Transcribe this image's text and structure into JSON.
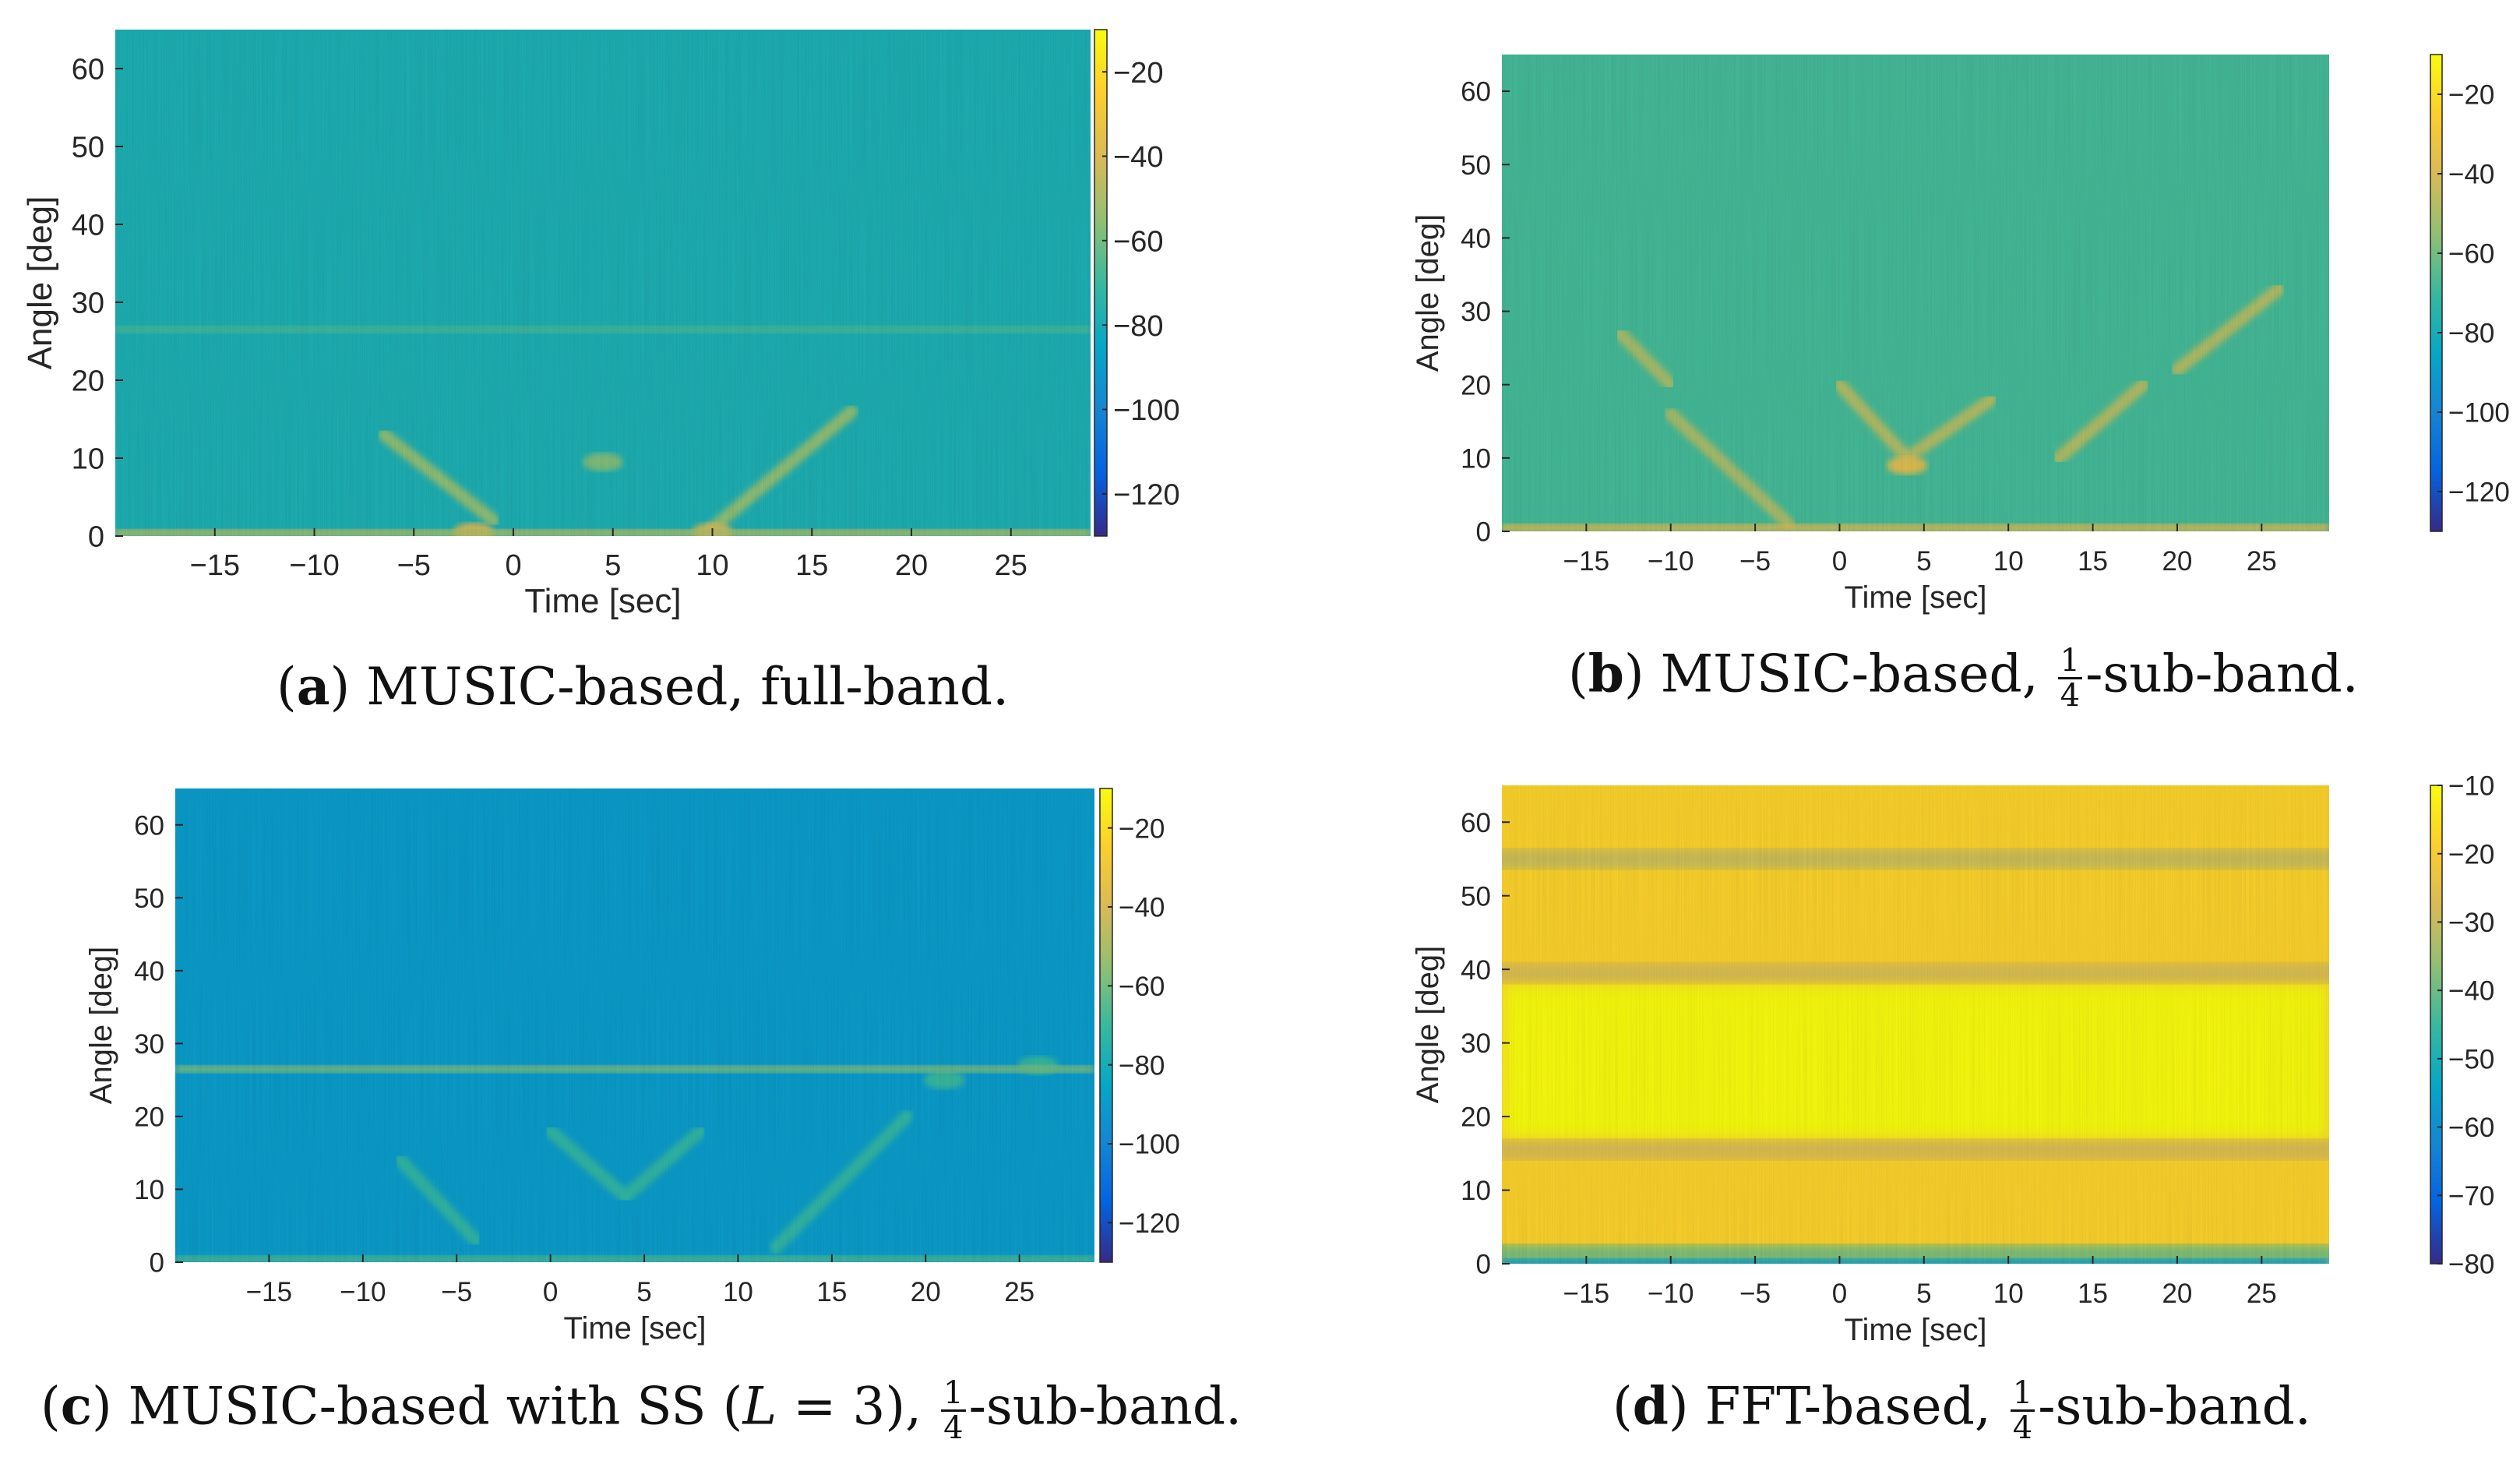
{
  "chart_data": [
    {
      "id": "a",
      "type": "heatmap",
      "xlabel": "Time [sec]",
      "ylabel": "Angle [deg]",
      "x_ticks": [
        -15,
        -10,
        -5,
        0,
        5,
        10,
        15,
        20,
        25
      ],
      "y_ticks": [
        0,
        10,
        20,
        30,
        40,
        50,
        60
      ],
      "xlim": [
        -20,
        29
      ],
      "ylim": [
        0,
        65
      ],
      "colorbar_ticks": [
        -20,
        -40,
        -60,
        -80,
        -100,
        -120
      ],
      "colorbar_range": [
        -130,
        -10
      ],
      "background_level": -78,
      "features": [
        {
          "kind": "hline",
          "y": 26.5,
          "level": -68,
          "x_range": [
            -20,
            29
          ]
        },
        {
          "kind": "hline",
          "y": 0.4,
          "level": -50,
          "x_range": [
            -20,
            29
          ]
        },
        {
          "kind": "track",
          "from": [
            -6.5,
            13
          ],
          "to": [
            -1,
            2
          ],
          "level": -55
        },
        {
          "kind": "track",
          "from": [
            17,
            16
          ],
          "to": [
            10,
            1
          ],
          "level": -55
        },
        {
          "kind": "blob",
          "at": [
            4.5,
            9.5
          ],
          "level": -58
        },
        {
          "kind": "blob",
          "at": [
            -2,
            0.5
          ],
          "level": -40
        },
        {
          "kind": "blob",
          "at": [
            10,
            0.5
          ],
          "level": -42
        }
      ],
      "caption": {
        "label": "a",
        "text": "MUSIC-based, full-band."
      }
    },
    {
      "id": "b",
      "type": "heatmap",
      "xlabel": "Time [sec]",
      "ylabel": "Angle [deg]",
      "x_ticks": [
        -15,
        -10,
        -5,
        0,
        5,
        10,
        15,
        20,
        25
      ],
      "y_ticks": [
        0,
        10,
        20,
        30,
        40,
        50,
        60
      ],
      "xlim": [
        -20,
        29
      ],
      "ylim": [
        0,
        65
      ],
      "colorbar_ticks": [
        -20,
        -40,
        -60,
        -80,
        -100,
        -120
      ],
      "colorbar_range": [
        -130,
        -10
      ],
      "background_level": -68,
      "features": [
        {
          "kind": "hline",
          "y": 0.5,
          "level": -40,
          "x_range": [
            -20,
            29
          ]
        },
        {
          "kind": "track",
          "from": [
            -13,
            27
          ],
          "to": [
            -10,
            20
          ],
          "level": -50
        },
        {
          "kind": "track",
          "from": [
            -10,
            16
          ],
          "to": [
            -3,
            1
          ],
          "level": -50
        },
        {
          "kind": "track",
          "from": [
            0,
            20
          ],
          "to": [
            4,
            10
          ],
          "level": -48
        },
        {
          "kind": "track",
          "from": [
            4,
            10
          ],
          "to": [
            9,
            18
          ],
          "level": -48
        },
        {
          "kind": "track",
          "from": [
            13,
            10
          ],
          "to": [
            18,
            20
          ],
          "level": -48
        },
        {
          "kind": "track",
          "from": [
            20,
            22
          ],
          "to": [
            26,
            33
          ],
          "level": -48
        },
        {
          "kind": "blob",
          "at": [
            4,
            9
          ],
          "level": -38
        }
      ],
      "caption": {
        "label": "b",
        "text_before": "MUSIC-based, ",
        "frac": [
          "1",
          "4"
        ],
        "text_after": "-sub-band."
      }
    },
    {
      "id": "c",
      "type": "heatmap",
      "xlabel": "Time [sec]",
      "ylabel": "Angle [deg]",
      "x_ticks": [
        -15,
        -10,
        -5,
        0,
        5,
        10,
        15,
        20,
        25
      ],
      "y_ticks": [
        0,
        10,
        20,
        30,
        40,
        50,
        60
      ],
      "xlim": [
        -20,
        29
      ],
      "ylim": [
        0,
        65
      ],
      "colorbar_ticks": [
        -20,
        -40,
        -60,
        -80,
        -100,
        -120
      ],
      "colorbar_range": [
        -130,
        -10
      ],
      "background_level": -90,
      "features": [
        {
          "kind": "hline",
          "y": 26.5,
          "level": -60,
          "x_range": [
            -20,
            29
          ]
        },
        {
          "kind": "hline",
          "y": 0.4,
          "level": -68,
          "x_range": [
            -20,
            29
          ]
        },
        {
          "kind": "track",
          "from": [
            -8,
            14
          ],
          "to": [
            -4,
            3
          ],
          "level": -72
        },
        {
          "kind": "track",
          "from": [
            0,
            18
          ],
          "to": [
            4,
            9
          ],
          "level": -72
        },
        {
          "kind": "track",
          "from": [
            4,
            9
          ],
          "to": [
            8,
            18
          ],
          "level": -72
        },
        {
          "kind": "track",
          "from": [
            19,
            20
          ],
          "to": [
            12,
            2
          ],
          "level": -72
        },
        {
          "kind": "blob",
          "at": [
            21,
            25
          ],
          "level": -70
        },
        {
          "kind": "blob",
          "at": [
            26,
            27
          ],
          "level": -70
        }
      ],
      "caption": {
        "label": "c",
        "text_before": "MUSIC-based with SS (",
        "math_var": "L",
        "math_rest": " = 3), ",
        "frac": [
          "1",
          "4"
        ],
        "text_after": "-sub-band."
      }
    },
    {
      "id": "d",
      "type": "heatmap",
      "xlabel": "Time [sec]",
      "ylabel": "Angle [deg]",
      "x_ticks": [
        -15,
        -10,
        -5,
        0,
        5,
        10,
        15,
        20,
        25
      ],
      "y_ticks": [
        0,
        10,
        20,
        30,
        40,
        50,
        60
      ],
      "xlim": [
        -20,
        29
      ],
      "ylim": [
        0,
        65
      ],
      "colorbar_ticks": [
        -10,
        -20,
        -30,
        -40,
        -50,
        -60,
        -70,
        -80
      ],
      "colorbar_range": [
        -80,
        -10
      ],
      "background_level": -18,
      "features": [
        {
          "kind": "hband",
          "y": 55,
          "level": -30
        },
        {
          "kind": "hband",
          "y": 39.5,
          "level": -28
        },
        {
          "kind": "hband",
          "y": 15.5,
          "level": -28
        },
        {
          "kind": "hband",
          "y": 1.2,
          "level": -40
        },
        {
          "kind": "hline",
          "y": 0.2,
          "level": -55,
          "x_range": [
            -20,
            29
          ]
        },
        {
          "kind": "bright",
          "y_range": [
            17,
            38
          ],
          "level": -10
        }
      ],
      "caption": {
        "label": "d",
        "text_before": "FFT-based, ",
        "frac": [
          "1",
          "4"
        ],
        "text_after": "-sub-band."
      }
    }
  ]
}
